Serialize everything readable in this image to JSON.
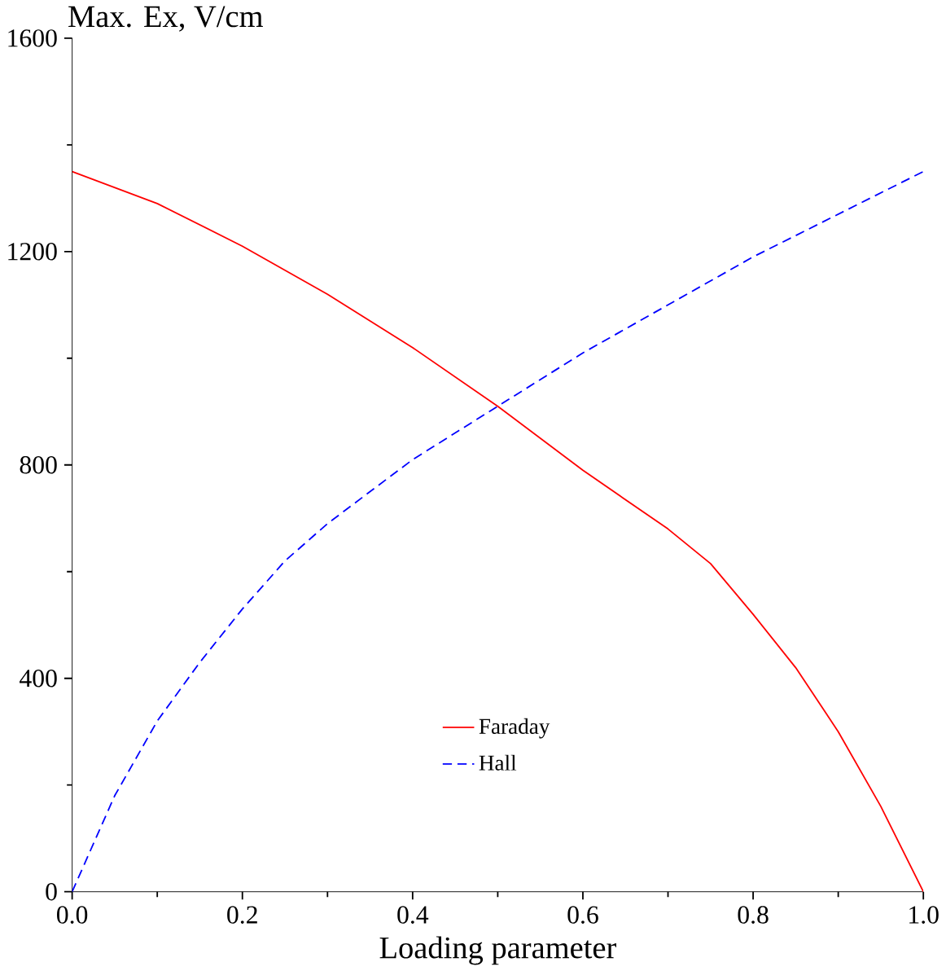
{
  "chart_data": {
    "type": "line",
    "xlabel": "Loading parameter",
    "ylabel": "Max. Ex, V/cm",
    "xlim": [
      0,
      1
    ],
    "ylim": [
      0,
      1600
    ],
    "xticks": [
      {
        "value": 0,
        "label": "0.0"
      },
      {
        "value": 0.2,
        "label": "0.2"
      },
      {
        "value": 0.4,
        "label": "0.4"
      },
      {
        "value": 0.6,
        "label": "0.6"
      },
      {
        "value": 0.8,
        "label": "0.8"
      },
      {
        "value": 1,
        "label": "1.0"
      }
    ],
    "yticks": [
      0,
      400,
      800,
      1200,
      1600
    ],
    "legend": "bottom",
    "grid": false,
    "series": [
      {
        "name": "Faraday",
        "color": "#ff0000",
        "line_style": "solid",
        "x": [
          0,
          0.1,
          0.2,
          0.3,
          0.4,
          0.5,
          0.6,
          0.7,
          0.75,
          0.8,
          0.85,
          0.9,
          0.95,
          1.0
        ],
        "values": [
          1350,
          1290,
          1210,
          1120,
          1020,
          910,
          790,
          680,
          615,
          520,
          420,
          300,
          160,
          0
        ]
      },
      {
        "name": "Hall",
        "color": "#0000ff",
        "line_style": "dashed",
        "x": [
          0,
          0.05,
          0.1,
          0.15,
          0.2,
          0.25,
          0.3,
          0.4,
          0.5,
          0.6,
          0.7,
          0.8,
          0.9,
          1.0
        ],
        "values": [
          0,
          180,
          320,
          430,
          530,
          620,
          690,
          810,
          910,
          1010,
          1100,
          1190,
          1270,
          1350
        ]
      }
    ]
  }
}
